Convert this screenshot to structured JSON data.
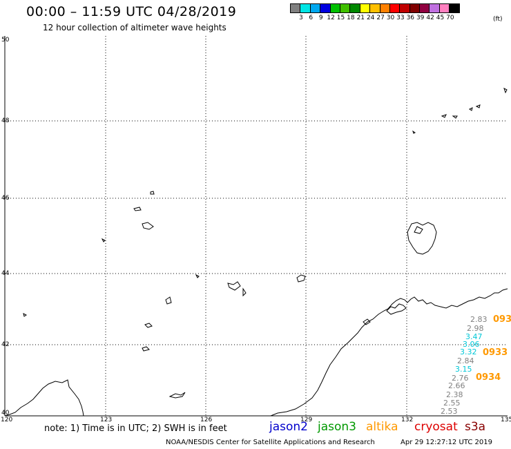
{
  "header": {
    "title": "00:00 – 11:59 UTC 04/28/2019",
    "subtitle": "12 hour collection of altimeter wave heights"
  },
  "legend": {
    "colors": [
      "#808080",
      "#00e5e5",
      "#00a8f0",
      "#0000e0",
      "#00c000",
      "#40c000",
      "#008800",
      "#ffff00",
      "#ffc000",
      "#ff8000",
      "#ff0000",
      "#c00000",
      "#800000",
      "#900040",
      "#c070e0",
      "#ff80c0",
      "#000000"
    ],
    "labels": [
      "3",
      "6",
      "9",
      "12",
      "15",
      "18",
      "21",
      "24",
      "27",
      "30",
      "33",
      "36",
      "39",
      "42",
      "45",
      "70"
    ],
    "unit": "(ft)"
  },
  "map": {
    "lat_labels": [
      "50",
      "48",
      "46",
      "44",
      "42",
      "40"
    ],
    "lon_labels": [
      "120",
      "123",
      "126",
      "129",
      "132",
      "135"
    ]
  },
  "wave_values": [
    {
      "value": "2.83",
      "color": "#808080"
    },
    {
      "value": "2.98",
      "color": "#808080"
    },
    {
      "value": "3.47",
      "color": "#00c8d8"
    },
    {
      "value": "3.06",
      "color": "#00c8d8"
    },
    {
      "value": "3.32",
      "color": "#00c8d8"
    },
    {
      "value": "2.84",
      "color": "#808080"
    },
    {
      "value": "3.15",
      "color": "#00c8d8"
    },
    {
      "value": "2.76",
      "color": "#808080"
    },
    {
      "value": "2.66",
      "color": "#808080"
    },
    {
      "value": "2.38",
      "color": "#808080"
    },
    {
      "value": "2.55",
      "color": "#808080"
    },
    {
      "value": "2.53",
      "color": "#808080"
    }
  ],
  "pass_labels": [
    "093",
    "0933",
    "0934"
  ],
  "footer": {
    "note": "note: 1) Time is in UTC; 2) SWH is in feet",
    "satellites": [
      {
        "name": "jason2",
        "color": "#0000cc"
      },
      {
        "name": "jason3",
        "color": "#009900"
      },
      {
        "name": "altika",
        "color": "#ff9900"
      },
      {
        "name": "cryosat",
        "color": "#dd0000"
      },
      {
        "name": "s3a",
        "color": "#880000"
      }
    ],
    "credit": "NOAA/NESDIS Center for Satellite Applications and Research",
    "timestamp": "Apr 29 12:27:12 UTC 2019"
  }
}
